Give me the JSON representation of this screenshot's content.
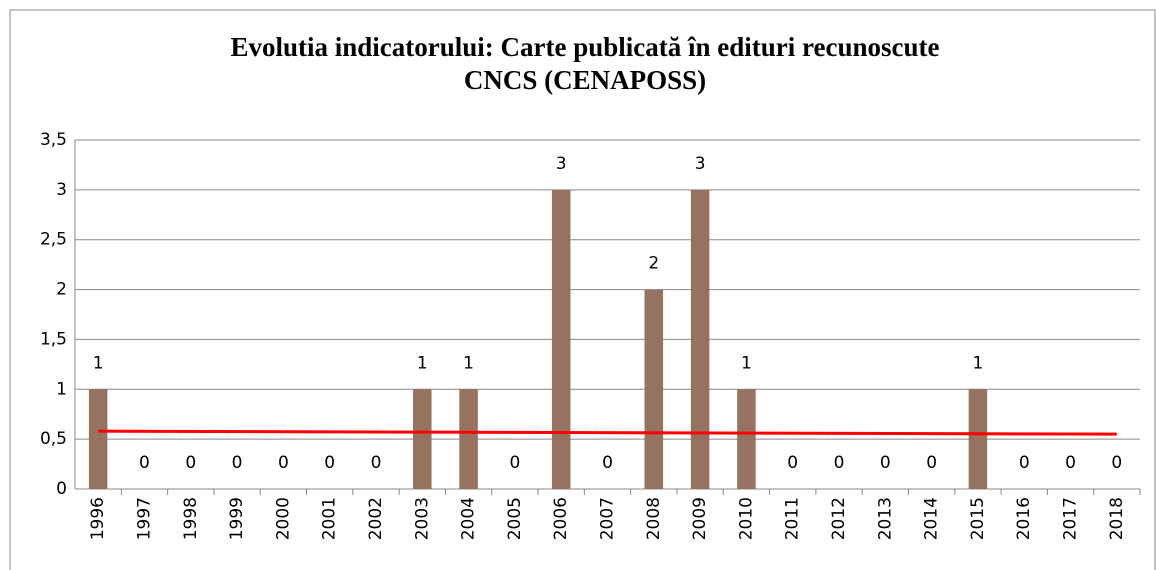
{
  "chart_data": {
    "type": "bar",
    "title": [
      "Evolutia indicatorului: Carte publicată în edituri recunoscute",
      "CNCS (CENAPOSS)"
    ],
    "categories": [
      "1996",
      "1997",
      "1998",
      "1999",
      "2000",
      "2001",
      "2002",
      "2003",
      "2004",
      "2005",
      "2006",
      "2007",
      "2008",
      "2009",
      "2010",
      "2011",
      "2012",
      "2013",
      "2014",
      "2015",
      "2016",
      "2017",
      "2018"
    ],
    "values": [
      1,
      0,
      0,
      0,
      0,
      0,
      0,
      1,
      1,
      0,
      3,
      0,
      2,
      3,
      1,
      0,
      0,
      0,
      0,
      1,
      0,
      0,
      0
    ],
    "color": "#987260",
    "trend": {
      "color": "#ff0000",
      "start": 0.58,
      "end": 0.55
    },
    "ylim": [
      0,
      3.5
    ],
    "yticks": [
      0,
      {
        "value": 0.5,
        "label": "0,5"
      },
      1,
      {
        "value": 1.5,
        "label": "1,5"
      },
      2,
      {
        "value": 2.5,
        "label": "2,5"
      },
      3,
      {
        "value": 3.5,
        "label": "3,5"
      }
    ],
    "grid": true
  }
}
